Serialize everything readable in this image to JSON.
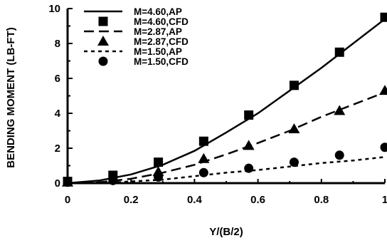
{
  "chart_data": {
    "type": "line",
    "title": "",
    "xlabel": "Y/(B/2)",
    "ylabel": "BENDING MOMENT (LB-FT)",
    "xlim": [
      0,
      1
    ],
    "ylim": [
      0,
      10
    ],
    "xticks": [
      0,
      0.2,
      0.4,
      0.6,
      0.8,
      1
    ],
    "xtick_labels": [
      "0",
      "0.2",
      "0.4",
      "0.6",
      "0.8",
      "1"
    ],
    "yticks": [
      0,
      2,
      4,
      6,
      8,
      10
    ],
    "ytick_labels": [
      "0",
      "2",
      "4",
      "6",
      "8",
      "10"
    ],
    "grid": false,
    "legend_position": "top-left",
    "series": [
      {
        "name": "M=4.60,AP",
        "style": "solid-line",
        "x": [
          0,
          0.1,
          0.2,
          0.3,
          0.4,
          0.5,
          0.6,
          0.7,
          0.8,
          0.9,
          1.0
        ],
        "y": [
          0,
          0.15,
          0.5,
          1.05,
          1.85,
          2.9,
          4.0,
          5.3,
          6.6,
          8.0,
          9.4
        ]
      },
      {
        "name": "M=4.60,CFD",
        "style": "square-marker",
        "x": [
          0,
          0.143,
          0.286,
          0.429,
          0.571,
          0.714,
          0.857,
          1.0
        ],
        "y": [
          0.1,
          0.45,
          1.2,
          2.4,
          3.9,
          5.6,
          7.5,
          9.5
        ]
      },
      {
        "name": "M=2.87,AP",
        "style": "long-dash-line",
        "x": [
          0,
          0.1,
          0.2,
          0.3,
          0.4,
          0.5,
          0.6,
          0.7,
          0.8,
          0.9,
          1.0
        ],
        "y": [
          0,
          0.05,
          0.25,
          0.6,
          1.05,
          1.65,
          2.3,
          3.0,
          3.8,
          4.5,
          5.2
        ]
      },
      {
        "name": "M=2.87,CFD",
        "style": "triangle-marker",
        "x": [
          0,
          0.143,
          0.286,
          0.429,
          0.571,
          0.714,
          0.857,
          1.0
        ],
        "y": [
          0.05,
          0.2,
          0.65,
          1.4,
          2.15,
          3.1,
          4.15,
          5.3
        ]
      },
      {
        "name": "M=1.50,AP",
        "style": "short-dash-line",
        "x": [
          0,
          0.15,
          0.3,
          0.4,
          0.5,
          0.6,
          0.7,
          0.8,
          0.9,
          1.0
        ],
        "y": [
          0,
          0.05,
          0.2,
          0.4,
          0.6,
          0.75,
          0.95,
          1.15,
          1.3,
          1.5
        ]
      },
      {
        "name": "M=1.50,CFD",
        "style": "circle-marker",
        "x": [
          0,
          0.143,
          0.286,
          0.429,
          0.571,
          0.714,
          0.857,
          1.0
        ],
        "y": [
          0.05,
          0.15,
          0.35,
          0.6,
          0.85,
          1.2,
          1.6,
          2.05
        ]
      }
    ]
  }
}
